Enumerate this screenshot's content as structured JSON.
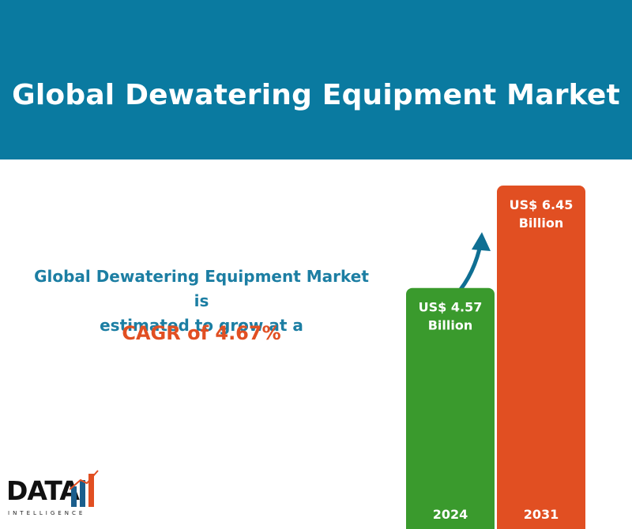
{
  "header": {
    "title": "Global Dewatering Equipment Market"
  },
  "headline": {
    "line1": "Global Dewatering Equipment Market is",
    "line2": "estimated to grow at a",
    "cagr": "CAGR of 4.67%"
  },
  "logo": {
    "word": "DATA",
    "subtitle": "INTELLIGENCE"
  },
  "colors": {
    "header_bg": "#0a7aa0",
    "headline_text": "#1c7ea3",
    "cagr_text": "#e14f22",
    "bar_2024": "#3a9a2d",
    "bar_2031": "#e14f22",
    "arrow": "#0f6f93"
  },
  "chart_data": {
    "type": "bar",
    "categories": [
      "2024",
      "2031"
    ],
    "values": [
      4.57,
      6.45
    ],
    "value_labels": [
      [
        "US$  4.57",
        "Billion"
      ],
      [
        "US$  6.45",
        "Billion"
      ]
    ],
    "unit": "US$ Billion",
    "title": "Global Dewatering Equipment Market",
    "ylim": [
      0,
      6.45
    ],
    "axes_visible": false,
    "grid": false
  }
}
